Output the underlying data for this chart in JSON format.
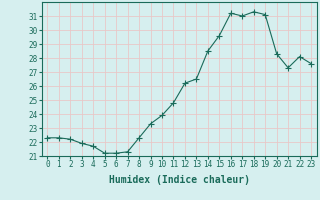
{
  "x": [
    0,
    1,
    2,
    3,
    4,
    5,
    6,
    7,
    8,
    9,
    10,
    11,
    12,
    13,
    14,
    15,
    16,
    17,
    18,
    19,
    20,
    21,
    22,
    23
  ],
  "y": [
    22.3,
    22.3,
    22.2,
    21.9,
    21.7,
    21.2,
    21.2,
    21.3,
    22.3,
    23.3,
    23.9,
    24.8,
    26.2,
    26.5,
    28.5,
    29.6,
    31.2,
    31.0,
    31.3,
    31.1,
    28.3,
    27.3,
    28.1,
    27.6
  ],
  "line_color": "#1a6b5a",
  "marker": "+",
  "marker_size": 4,
  "bg_color": "#d6efef",
  "grid_color": "#e8c8c8",
  "tick_color": "#1a6b5a",
  "xlabel": "Humidex (Indice chaleur)",
  "ylim": [
    21,
    32
  ],
  "xlim": [
    -0.5,
    23.5
  ],
  "yticks": [
    21,
    22,
    23,
    24,
    25,
    26,
    27,
    28,
    29,
    30,
    31
  ],
  "xticks": [
    0,
    1,
    2,
    3,
    4,
    5,
    6,
    7,
    8,
    9,
    10,
    11,
    12,
    13,
    14,
    15,
    16,
    17,
    18,
    19,
    20,
    21,
    22,
    23
  ],
  "font_size": 5.5,
  "label_font_size": 7.0
}
